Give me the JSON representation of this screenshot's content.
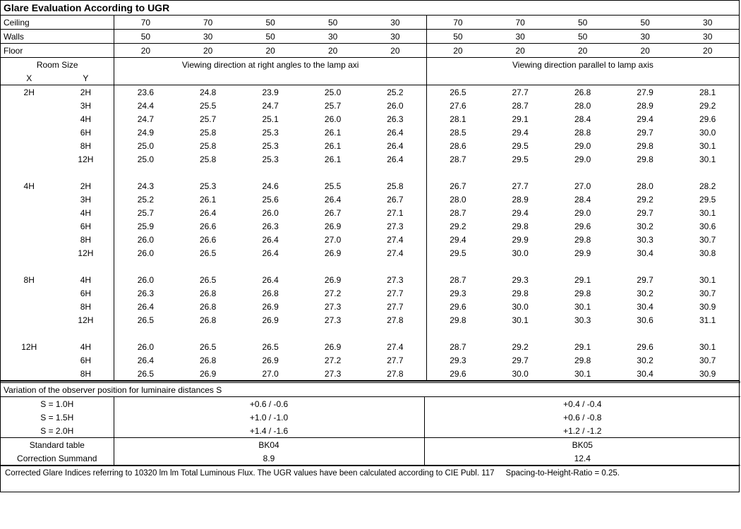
{
  "title": "Glare Evaluation According to UGR",
  "reflectance_labels": [
    "Ceiling",
    "Walls",
    "Floor"
  ],
  "reflectance": {
    "ceiling": [
      "70",
      "70",
      "50",
      "50",
      "30",
      "70",
      "70",
      "50",
      "50",
      "30"
    ],
    "walls": [
      "50",
      "30",
      "50",
      "30",
      "30",
      "50",
      "30",
      "50",
      "30",
      "30"
    ],
    "floor": [
      "20",
      "20",
      "20",
      "20",
      "20",
      "20",
      "20",
      "20",
      "20",
      "20"
    ]
  },
  "room_size_label": "Room Size",
  "xy_labels": [
    "X",
    "Y"
  ],
  "viewing_headers": [
    "Viewing direction at right angles to the lamp axi",
    "Viewing direction parallel to lamp axis"
  ],
  "groups": [
    {
      "x": "2H",
      "rows": [
        {
          "y": "2H",
          "v": [
            "23.6",
            "24.8",
            "23.9",
            "25.0",
            "25.2",
            "26.5",
            "27.7",
            "26.8",
            "27.9",
            "28.1"
          ]
        },
        {
          "y": "3H",
          "v": [
            "24.4",
            "25.5",
            "24.7",
            "25.7",
            "26.0",
            "27.6",
            "28.7",
            "28.0",
            "28.9",
            "29.2"
          ]
        },
        {
          "y": "4H",
          "v": [
            "24.7",
            "25.7",
            "25.1",
            "26.0",
            "26.3",
            "28.1",
            "29.1",
            "28.4",
            "29.4",
            "29.6"
          ]
        },
        {
          "y": "6H",
          "v": [
            "24.9",
            "25.8",
            "25.3",
            "26.1",
            "26.4",
            "28.5",
            "29.4",
            "28.8",
            "29.7",
            "30.0"
          ]
        },
        {
          "y": "8H",
          "v": [
            "25.0",
            "25.8",
            "25.3",
            "26.1",
            "26.4",
            "28.6",
            "29.5",
            "29.0",
            "29.8",
            "30.1"
          ]
        },
        {
          "y": "12H",
          "v": [
            "25.0",
            "25.8",
            "25.3",
            "26.1",
            "26.4",
            "28.7",
            "29.5",
            "29.0",
            "29.8",
            "30.1"
          ]
        }
      ]
    },
    {
      "x": "4H",
      "rows": [
        {
          "y": "2H",
          "v": [
            "24.3",
            "25.3",
            "24.6",
            "25.5",
            "25.8",
            "26.7",
            "27.7",
            "27.0",
            "28.0",
            "28.2"
          ]
        },
        {
          "y": "3H",
          "v": [
            "25.2",
            "26.1",
            "25.6",
            "26.4",
            "26.7",
            "28.0",
            "28.9",
            "28.4",
            "29.2",
            "29.5"
          ]
        },
        {
          "y": "4H",
          "v": [
            "25.7",
            "26.4",
            "26.0",
            "26.7",
            "27.1",
            "28.7",
            "29.4",
            "29.0",
            "29.7",
            "30.1"
          ]
        },
        {
          "y": "6H",
          "v": [
            "25.9",
            "26.6",
            "26.3",
            "26.9",
            "27.3",
            "29.2",
            "29.8",
            "29.6",
            "30.2",
            "30.6"
          ]
        },
        {
          "y": "8H",
          "v": [
            "26.0",
            "26.6",
            "26.4",
            "27.0",
            "27.4",
            "29.4",
            "29.9",
            "29.8",
            "30.3",
            "30.7"
          ]
        },
        {
          "y": "12H",
          "v": [
            "26.0",
            "26.5",
            "26.4",
            "26.9",
            "27.4",
            "29.5",
            "30.0",
            "29.9",
            "30.4",
            "30.8"
          ]
        }
      ]
    },
    {
      "x": "8H",
      "rows": [
        {
          "y": "4H",
          "v": [
            "26.0",
            "26.5",
            "26.4",
            "26.9",
            "27.3",
            "28.7",
            "29.3",
            "29.1",
            "29.7",
            "30.1"
          ]
        },
        {
          "y": "6H",
          "v": [
            "26.3",
            "26.8",
            "26.8",
            "27.2",
            "27.7",
            "29.3",
            "29.8",
            "29.8",
            "30.2",
            "30.7"
          ]
        },
        {
          "y": "8H",
          "v": [
            "26.4",
            "26.8",
            "26.9",
            "27.3",
            "27.7",
            "29.6",
            "30.0",
            "30.1",
            "30.4",
            "30.9"
          ]
        },
        {
          "y": "12H",
          "v": [
            "26.5",
            "26.8",
            "26.9",
            "27.3",
            "27.8",
            "29.8",
            "30.1",
            "30.3",
            "30.6",
            "31.1"
          ]
        }
      ]
    },
    {
      "x": "12H",
      "rows": [
        {
          "y": "4H",
          "v": [
            "26.0",
            "26.5",
            "26.5",
            "26.9",
            "27.4",
            "28.7",
            "29.2",
            "29.1",
            "29.6",
            "30.1"
          ]
        },
        {
          "y": "6H",
          "v": [
            "26.4",
            "26.8",
            "26.9",
            "27.2",
            "27.7",
            "29.3",
            "29.7",
            "29.8",
            "30.2",
            "30.7"
          ]
        },
        {
          "y": "8H",
          "v": [
            "26.5",
            "26.9",
            "27.0",
            "27.3",
            "27.8",
            "29.6",
            "30.0",
            "30.1",
            "30.4",
            "30.9"
          ]
        }
      ]
    }
  ],
  "variation_label": "Variation of the observer position for luminaire distances S",
  "variation_rows": [
    {
      "s": "S = 1.0H",
      "left": "+0.6 / -0.6",
      "right": "+0.4 / -0.4"
    },
    {
      "s": "S = 1.5H",
      "left": "+1.0 / -1.0",
      "right": "+0.6 / -0.8"
    },
    {
      "s": "S = 2.0H",
      "left": "+1.4 / -1.6",
      "right": "+1.2 / -1.2"
    }
  ],
  "standard_table_label": "Standard table",
  "correction_label": "Correction Summand",
  "standard_tables": {
    "left": "BK04",
    "right": "BK05"
  },
  "correction_values": {
    "left": "8.9",
    "right": "12.4"
  },
  "footnote_left": "Corrected Glare Indices referring to 10320 lm lm Total Luminous Flux. The UGR values have been calculated according to CIE Publ. 117",
  "footnote_right": "Spacing-to-Height-Ratio = 0.25."
}
